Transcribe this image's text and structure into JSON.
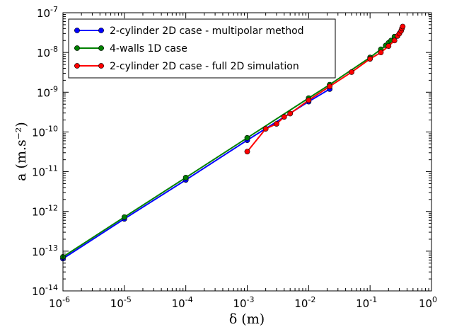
{
  "chart_data": {
    "type": "line",
    "x_scale": "log",
    "y_scale": "log",
    "xlim": [
      1e-06,
      1
    ],
    "ylim": [
      1e-14,
      1e-07
    ],
    "xlabel": "δ (m)",
    "ylabel": "a (m.s⁻²)",
    "x_ticks": [
      {
        "base": "10",
        "exp": "-6",
        "value": 1e-06
      },
      {
        "base": "10",
        "exp": "-5",
        "value": 1e-05
      },
      {
        "base": "10",
        "exp": "-4",
        "value": 0.0001
      },
      {
        "base": "10",
        "exp": "-3",
        "value": 0.001
      },
      {
        "base": "10",
        "exp": "-2",
        "value": 0.01
      },
      {
        "base": "10",
        "exp": "-1",
        "value": 0.1
      },
      {
        "base": "10",
        "exp": "0",
        "value": 1
      }
    ],
    "y_ticks": [
      {
        "base": "10",
        "exp": "-14",
        "value": 1e-14
      },
      {
        "base": "10",
        "exp": "-13",
        "value": 1e-13
      },
      {
        "base": "10",
        "exp": "-12",
        "value": 1e-12
      },
      {
        "base": "10",
        "exp": "-11",
        "value": 1e-11
      },
      {
        "base": "10",
        "exp": "-10",
        "value": 1e-10
      },
      {
        "base": "10",
        "exp": "-9",
        "value": 1e-09
      },
      {
        "base": "10",
        "exp": "-8",
        "value": 1e-08
      },
      {
        "base": "10",
        "exp": "-7",
        "value": 1e-07
      }
    ],
    "legend_position": "top-left",
    "series": [
      {
        "name": "2-cylinder 2D case - multipolar method",
        "color": "#0000ff",
        "points": [
          [
            1e-06,
            6.5e-14
          ],
          [
            1e-05,
            6.5e-13
          ],
          [
            0.0001,
            6.2e-12
          ],
          [
            0.001,
            6.2e-11
          ],
          [
            0.01,
            5.8e-10
          ],
          [
            0.022,
            1.2e-09
          ]
        ]
      },
      {
        "name": "4-walls 1D case",
        "color": "#008000",
        "points": [
          [
            1e-06,
            7.2e-14
          ],
          [
            1e-05,
            7.2e-13
          ],
          [
            0.0001,
            7.1e-12
          ],
          [
            0.001,
            7.1e-11
          ],
          [
            0.01,
            7.1e-10
          ],
          [
            0.022,
            1.55e-09
          ],
          [
            0.1,
            7.5e-09
          ],
          [
            0.15,
            1.2e-08
          ],
          [
            0.18,
            1.5e-08
          ],
          [
            0.2,
            1.75e-08
          ],
          [
            0.22,
            2e-08
          ],
          [
            0.25,
            2.5e-08
          ]
        ]
      },
      {
        "name": "2-cylinder 2D case - full 2D simulation",
        "color": "#ff0000",
        "points": [
          [
            0.001,
            3.2e-11
          ],
          [
            0.002,
            1.2e-10
          ],
          [
            0.003,
            1.6e-10
          ],
          [
            0.004,
            2.4e-10
          ],
          [
            0.005,
            2.9e-10
          ],
          [
            0.01,
            6.3e-10
          ],
          [
            0.022,
            1.4e-09
          ],
          [
            0.05,
            3.2e-09
          ],
          [
            0.1,
            6.9e-09
          ],
          [
            0.15,
            1e-08
          ],
          [
            0.2,
            1.45e-08
          ],
          [
            0.25,
            2e-08
          ],
          [
            0.28,
            2.6e-08
          ],
          [
            0.3,
            3e-08
          ],
          [
            0.32,
            3.5e-08
          ],
          [
            0.33,
            4e-08
          ],
          [
            0.34,
            4.5e-08
          ]
        ]
      }
    ]
  }
}
